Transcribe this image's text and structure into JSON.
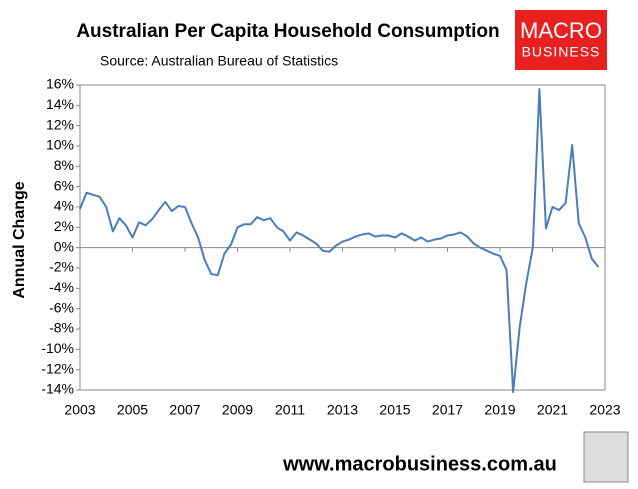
{
  "chart_data": {
    "type": "line",
    "title": "Australian Per Capita Household Consumption",
    "subtitle": "Source: Australian Bureau of Statistics",
    "y_label": "Annual Change",
    "logo": {
      "line1": "MACRO",
      "line2": "BUSINESS"
    },
    "footer": "www.macrobusiness.com.au",
    "x": [
      2003,
      2003.25,
      2003.5,
      2003.75,
      2004,
      2004.25,
      2004.5,
      2004.75,
      2005,
      2005.25,
      2005.5,
      2005.75,
      2006,
      2006.25,
      2006.5,
      2006.75,
      2007,
      2007.25,
      2007.5,
      2007.75,
      2008,
      2008.25,
      2008.5,
      2008.75,
      2009,
      2009.25,
      2009.5,
      2009.75,
      2010,
      2010.25,
      2010.5,
      2010.75,
      2011,
      2011.25,
      2011.5,
      2011.75,
      2012,
      2012.25,
      2012.5,
      2012.75,
      2013,
      2013.25,
      2013.5,
      2013.75,
      2014,
      2014.25,
      2014.5,
      2014.75,
      2015,
      2015.25,
      2015.5,
      2015.75,
      2016,
      2016.25,
      2016.5,
      2016.75,
      2017,
      2017.25,
      2017.5,
      2017.75,
      2018,
      2018.25,
      2018.5,
      2018.75,
      2019,
      2019.25,
      2019.5,
      2019.75,
      2020,
      2020.25,
      2020.5,
      2020.75,
      2021,
      2021.25,
      2021.5,
      2021.75,
      2022,
      2022.25,
      2022.5,
      2022.75
    ],
    "series": [
      {
        "name": "Annual Change",
        "color": "#4a7ebb",
        "values": [
          3.8,
          5.4,
          5.2,
          5.0,
          4.0,
          1.6,
          2.9,
          2.2,
          1.0,
          2.5,
          2.2,
          2.8,
          3.7,
          4.5,
          3.6,
          4.1,
          4.0,
          2.4,
          1.0,
          -1.2,
          -2.6,
          -2.7,
          -0.6,
          0.3,
          2.0,
          2.3,
          2.3,
          3.0,
          2.7,
          2.9,
          2.0,
          1.6,
          0.7,
          1.5,
          1.2,
          0.8,
          0.4,
          -0.3,
          -0.4,
          0.2,
          0.6,
          0.8,
          1.1,
          1.3,
          1.4,
          1.1,
          1.2,
          1.2,
          1.0,
          1.4,
          1.1,
          0.7,
          1.0,
          0.6,
          0.8,
          0.9,
          1.2,
          1.3,
          1.5,
          1.1,
          0.4,
          0.0,
          -0.3,
          -0.6,
          -0.8,
          -2.2,
          -14.2,
          -7.8,
          -3.5,
          0.0,
          15.6,
          1.9,
          4.0,
          3.7,
          4.4,
          10.1,
          2.4,
          1.0,
          -1.1,
          -1.9
        ]
      }
    ],
    "xlim": [
      2003,
      2023
    ],
    "xticks": [
      2003,
      2005,
      2007,
      2009,
      2011,
      2013,
      2015,
      2017,
      2019,
      2021,
      2023
    ],
    "ylim": [
      -14,
      16
    ],
    "yticks": [
      {
        "value": -14,
        "label": "-14%"
      },
      {
        "value": -12,
        "label": "-12%"
      },
      {
        "value": -10,
        "label": "-10%"
      },
      {
        "value": -8,
        "label": "-8%"
      },
      {
        "value": -6,
        "label": "-6%"
      },
      {
        "value": -4,
        "label": "-4%"
      },
      {
        "value": -2,
        "label": "-2%"
      },
      {
        "value": 0,
        "label": "0%"
      },
      {
        "value": 2,
        "label": "2%"
      },
      {
        "value": 4,
        "label": "4%"
      },
      {
        "value": 6,
        "label": "6%"
      },
      {
        "value": 8,
        "label": "8%"
      },
      {
        "value": 10,
        "label": "10%"
      },
      {
        "value": 12,
        "label": "12%"
      },
      {
        "value": 14,
        "label": "14%"
      },
      {
        "value": 16,
        "label": "16%"
      }
    ],
    "grid": false
  }
}
